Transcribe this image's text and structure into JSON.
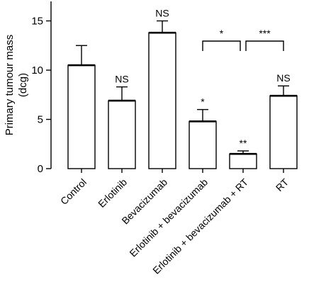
{
  "chart_data": {
    "type": "bar",
    "ylabel": "Primary tumour mass",
    "ylabel_unit": "(dcg)",
    "ylim": [
      0,
      17
    ],
    "yticks": [
      0,
      5,
      10,
      15
    ],
    "yticks_labels": [
      "0",
      "5",
      "10",
      "15"
    ],
    "categories": [
      "Control",
      "Erlotinib",
      "Bevacizumab",
      "Erlotinib + bevacizumab",
      "Erlotinib + bevacizumab + RT",
      "RT"
    ],
    "values": [
      10.5,
      6.9,
      13.8,
      4.8,
      1.5,
      7.4
    ],
    "errors": [
      2.0,
      1.4,
      1.2,
      1.2,
      0.3,
      1.0
    ],
    "bar_labels": [
      "",
      "NS",
      "NS",
      "*",
      "**",
      "NS"
    ],
    "comparisons": [
      {
        "from": "Erlotinib + bevacizumab",
        "to": "Erlotinib + bevacizumab + RT",
        "label": "*"
      },
      {
        "from": "Erlotinib + bevacizumab + RT",
        "to": "RT",
        "label": "***"
      }
    ],
    "colors": {
      "bar_fill": "#ffffff",
      "stroke": "#000000"
    }
  }
}
